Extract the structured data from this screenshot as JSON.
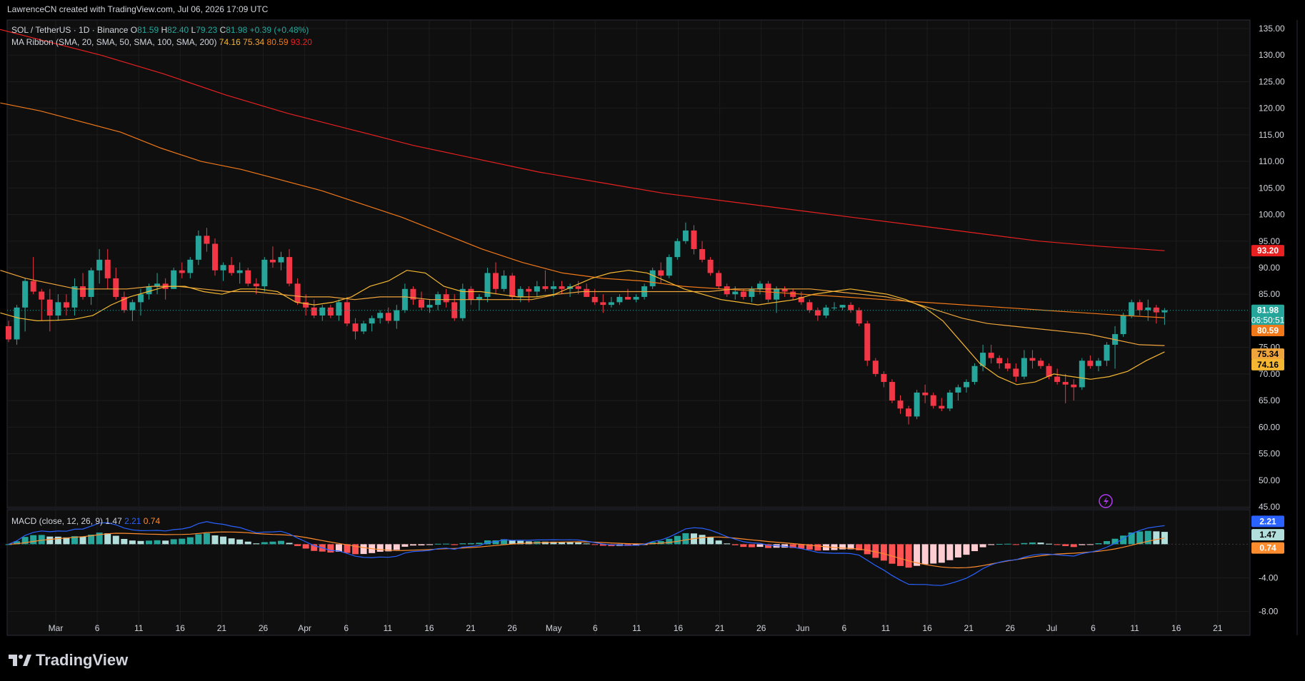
{
  "header": {
    "credit": "LawrenceCN created with TradingView.com, Jul 06, 2026 17:09 UTC"
  },
  "legend": {
    "symbol": "SOL / TetherUS · 1D · Binance",
    "o_label": "O",
    "o_value": "81.59",
    "h_label": "H",
    "h_value": "82.40",
    "l_label": "L",
    "l_value": "79.23",
    "c_label": "C",
    "c_value": "81.98",
    "change": "+0.39 (+0.48%)",
    "ma_title": "MA Ribbon (SMA, 20, SMA, 50, SMA, 100, SMA, 200)",
    "ma_values": [
      "74.16",
      "75.34",
      "80.59",
      "93.20"
    ],
    "macd_title": "MACD (close, 12, 26, 9)",
    "macd_values": [
      "1.47",
      "2.21",
      "0.74"
    ]
  },
  "colors": {
    "up": "#26a69a",
    "down": "#f23645",
    "hist_up_strong": "#26a69a",
    "hist_up_weak": "#b2dfdb",
    "hist_down_strong": "#ff5252",
    "hist_down_weak": "#ffcdd2",
    "ma20": "#f5b731",
    "ma50": "#f0a53c",
    "ma100": "#f07818",
    "ma200": "#e82020",
    "macd": "#2962ff",
    "signal": "#ff8c2e",
    "grid": "#1c1c1c",
    "text": "#d1d4dc"
  },
  "price_axis": {
    "ticks": [
      "135.00",
      "130.00",
      "125.00",
      "120.00",
      "115.00",
      "110.00",
      "105.00",
      "100.00",
      "95.00",
      "90.00",
      "85.00",
      "80.00",
      "75.00",
      "70.00",
      "65.00",
      "60.00",
      "55.00",
      "50.00",
      "45.00"
    ],
    "badges": [
      {
        "value": "93.20",
        "color": "#e82020",
        "text_color": "#ffffff"
      },
      {
        "value": "81.98",
        "sub": "06:50:51",
        "color": "#26a69a",
        "text_color": "#ffffff"
      },
      {
        "value": "80.59",
        "color": "#f07818",
        "text_color": "#ffffff"
      },
      {
        "value": "75.34",
        "color": "#f0a53c",
        "text_color": "#000000"
      },
      {
        "value": "74.16",
        "color": "#f5b731",
        "text_color": "#000000"
      }
    ]
  },
  "macd_axis": {
    "ticks": [
      "-4.00",
      "-8.00"
    ],
    "badges": [
      {
        "value": "2.21",
        "color": "#2962ff",
        "text_color": "#ffffff"
      },
      {
        "value": "1.47",
        "color": "#b2dfdb",
        "text_color": "#000000"
      },
      {
        "value": "0.74",
        "color": "#ff8c2e",
        "text_color": "#ffffff"
      }
    ]
  },
  "time_axis": {
    "labels": [
      "Mar",
      "6",
      "11",
      "16",
      "21",
      "26",
      "Apr",
      "6",
      "11",
      "16",
      "21",
      "26",
      "May",
      "6",
      "11",
      "16",
      "21",
      "26",
      "Jun",
      "6",
      "11",
      "16",
      "21",
      "26",
      "Jul",
      "6",
      "11",
      "16",
      "21"
    ]
  },
  "brand": {
    "name": "TradingView"
  },
  "chart_data": {
    "type": "candlestick",
    "symbol": "SOL / TetherUS",
    "interval": "1D",
    "ylim": [
      45,
      135
    ],
    "start_date": "2026-02-23",
    "candles": [
      [
        79.0,
        80.0,
        76.0,
        76.5
      ],
      [
        76.5,
        83.0,
        75.5,
        82.5
      ],
      [
        82.5,
        88.0,
        78.0,
        87.5
      ],
      [
        87.5,
        92.0,
        85.0,
        85.5
      ],
      [
        85.5,
        86.0,
        80.0,
        84.0
      ],
      [
        84.0,
        86.0,
        78.0,
        81.0
      ],
      [
        81.0,
        85.0,
        80.0,
        83.5
      ],
      [
        83.5,
        85.0,
        81.0,
        82.5
      ],
      [
        82.5,
        88.0,
        81.0,
        86.5
      ],
      [
        86.5,
        89.0,
        84.0,
        84.5
      ],
      [
        84.5,
        90.0,
        83.0,
        89.5
      ],
      [
        89.5,
        93.5,
        87.0,
        91.5
      ],
      [
        91.5,
        93.5,
        86.0,
        88.0
      ],
      [
        88.0,
        90.0,
        84.0,
        84.5
      ],
      [
        84.5,
        85.5,
        81.5,
        82.0
      ],
      [
        82.0,
        84.0,
        80.0,
        83.5
      ],
      [
        83.5,
        86.0,
        81.0,
        85.0
      ],
      [
        85.0,
        87.0,
        84.0,
        86.5
      ],
      [
        86.5,
        89.0,
        85.0,
        87.0
      ],
      [
        87.0,
        88.0,
        84.0,
        86.0
      ],
      [
        86.0,
        90.0,
        86.0,
        89.5
      ],
      [
        89.5,
        91.0,
        88.0,
        89.0
      ],
      [
        89.0,
        92.0,
        88.0,
        91.5
      ],
      [
        91.5,
        97.0,
        90.5,
        96.0
      ],
      [
        96.0,
        97.5,
        93.0,
        94.5
      ],
      [
        94.5,
        95.5,
        88.5,
        89.5
      ],
      [
        89.5,
        91.0,
        87.5,
        90.5
      ],
      [
        90.5,
        92.0,
        88.5,
        89.0
      ],
      [
        89.0,
        91.0,
        87.0,
        89.5
      ],
      [
        89.5,
        90.0,
        86.5,
        87.0
      ],
      [
        87.0,
        88.0,
        85.0,
        86.5
      ],
      [
        86.5,
        92.0,
        85.5,
        91.5
      ],
      [
        91.5,
        94.0,
        90.0,
        91.0
      ],
      [
        91.0,
        93.0,
        89.5,
        92.0
      ],
      [
        92.0,
        93.5,
        86.5,
        87.0
      ],
      [
        87.0,
        88.0,
        83.0,
        83.5
      ],
      [
        83.5,
        85.0,
        81.0,
        82.5
      ],
      [
        82.5,
        84.0,
        80.5,
        81.0
      ],
      [
        81.0,
        83.0,
        80.0,
        82.5
      ],
      [
        82.5,
        83.0,
        80.5,
        81.0
      ],
      [
        81.0,
        84.0,
        80.0,
        83.5
      ],
      [
        83.5,
        84.5,
        79.0,
        79.5
      ],
      [
        79.5,
        80.5,
        76.5,
        78.0
      ],
      [
        78.0,
        80.0,
        77.5,
        79.5
      ],
      [
        79.5,
        81.0,
        78.0,
        80.5
      ],
      [
        80.5,
        82.0,
        79.5,
        81.5
      ],
      [
        81.5,
        82.5,
        79.5,
        80.0
      ],
      [
        80.0,
        83.0,
        78.5,
        82.0
      ],
      [
        82.0,
        87.0,
        81.5,
        86.0
      ],
      [
        86.0,
        86.5,
        83.0,
        84.0
      ],
      [
        84.0,
        85.5,
        82.0,
        82.5
      ],
      [
        82.5,
        84.0,
        81.5,
        83.0
      ],
      [
        83.0,
        85.5,
        82.0,
        85.0
      ],
      [
        85.0,
        86.0,
        82.5,
        83.5
      ],
      [
        83.5,
        85.0,
        80.0,
        80.5
      ],
      [
        80.5,
        87.0,
        80.0,
        86.0
      ],
      [
        86.0,
        86.5,
        83.0,
        84.0
      ],
      [
        84.0,
        85.0,
        82.0,
        84.5
      ],
      [
        84.5,
        90.0,
        83.5,
        89.0
      ],
      [
        89.0,
        91.0,
        85.0,
        86.0
      ],
      [
        86.0,
        89.5,
        85.5,
        88.5
      ],
      [
        88.5,
        89.0,
        84.0,
        84.5
      ],
      [
        84.5,
        86.5,
        83.5,
        86.0
      ],
      [
        86.0,
        86.5,
        83.5,
        85.5
      ],
      [
        85.5,
        87.5,
        84.5,
        86.5
      ],
      [
        86.5,
        89.5,
        85.5,
        86.0
      ],
      [
        86.0,
        87.5,
        84.5,
        86.5
      ],
      [
        86.5,
        87.5,
        85.0,
        86.0
      ],
      [
        86.0,
        87.0,
        84.5,
        86.5
      ],
      [
        86.5,
        87.5,
        85.0,
        86.0
      ],
      [
        86.0,
        87.0,
        84.5,
        84.5
      ],
      [
        84.5,
        86.0,
        83.0,
        83.5
      ],
      [
        83.5,
        85.0,
        81.5,
        83.0
      ],
      [
        83.0,
        84.5,
        82.5,
        83.5
      ],
      [
        83.5,
        85.0,
        83.0,
        84.5
      ],
      [
        84.5,
        86.0,
        84.0,
        84.0
      ],
      [
        84.0,
        85.0,
        83.5,
        84.5
      ],
      [
        84.5,
        87.0,
        84.0,
        86.5
      ],
      [
        86.5,
        90.0,
        86.0,
        89.5
      ],
      [
        89.5,
        91.0,
        87.0,
        88.5
      ],
      [
        88.5,
        92.5,
        88.0,
        92.0
      ],
      [
        92.0,
        95.5,
        91.5,
        95.0
      ],
      [
        95.0,
        98.5,
        94.5,
        97.0
      ],
      [
        97.0,
        98.0,
        92.5,
        93.5
      ],
      [
        93.5,
        95.0,
        91.0,
        91.5
      ],
      [
        91.5,
        92.0,
        88.5,
        89.0
      ],
      [
        89.0,
        89.5,
        86.0,
        86.5
      ],
      [
        86.5,
        87.0,
        84.5,
        85.0
      ],
      [
        85.0,
        86.5,
        84.0,
        85.5
      ],
      [
        85.5,
        86.0,
        84.0,
        84.5
      ],
      [
        84.5,
        86.5,
        83.5,
        86.0
      ],
      [
        86.0,
        87.5,
        85.0,
        87.0
      ],
      [
        87.0,
        87.5,
        83.5,
        84.0
      ],
      [
        84.0,
        86.5,
        81.5,
        86.0
      ],
      [
        86.0,
        86.5,
        84.5,
        85.5
      ],
      [
        85.5,
        86.0,
        84.0,
        84.5
      ],
      [
        84.5,
        85.5,
        83.0,
        83.5
      ],
      [
        83.5,
        84.0,
        81.5,
        82.0
      ],
      [
        82.0,
        82.5,
        80.0,
        81.0
      ],
      [
        81.0,
        83.0,
        80.5,
        82.5
      ],
      [
        82.5,
        83.5,
        82.0,
        82.5
      ],
      [
        82.5,
        83.0,
        82.0,
        83.0
      ],
      [
        83.0,
        83.5,
        81.5,
        82.0
      ],
      [
        82.0,
        82.5,
        79.0,
        79.5
      ],
      [
        79.5,
        80.0,
        71.5,
        72.5
      ],
      [
        72.5,
        73.0,
        69.5,
        70.0
      ],
      [
        70.0,
        70.5,
        67.5,
        68.5
      ],
      [
        68.5,
        69.0,
        64.5,
        65.0
      ],
      [
        65.0,
        66.0,
        62.5,
        63.5
      ],
      [
        63.5,
        64.0,
        60.5,
        62.0
      ],
      [
        62.0,
        67.0,
        61.5,
        66.5
      ],
      [
        66.5,
        68.0,
        64.5,
        66.0
      ],
      [
        66.0,
        66.5,
        63.5,
        64.0
      ],
      [
        64.0,
        65.5,
        63.0,
        63.5
      ],
      [
        63.5,
        67.0,
        63.0,
        66.5
      ],
      [
        66.5,
        68.0,
        65.0,
        67.5
      ],
      [
        67.5,
        69.0,
        66.5,
        68.5
      ],
      [
        68.5,
        72.0,
        68.0,
        71.5
      ],
      [
        71.5,
        75.5,
        70.5,
        74.0
      ],
      [
        74.0,
        75.5,
        72.0,
        73.0
      ],
      [
        73.0,
        73.5,
        71.0,
        72.0
      ],
      [
        72.0,
        73.0,
        70.5,
        71.0
      ],
      [
        71.0,
        72.0,
        68.5,
        69.5
      ],
      [
        69.5,
        74.5,
        69.0,
        73.0
      ],
      [
        73.0,
        74.5,
        71.0,
        72.5
      ],
      [
        72.5,
        73.0,
        71.0,
        71.5
      ],
      [
        71.5,
        72.0,
        69.0,
        69.5
      ],
      [
        69.5,
        71.0,
        68.0,
        68.5
      ],
      [
        68.5,
        70.0,
        64.5,
        68.0
      ],
      [
        68.0,
        69.0,
        65.0,
        67.5
      ],
      [
        67.5,
        73.0,
        67.0,
        72.5
      ],
      [
        72.5,
        73.5,
        71.0,
        71.5
      ],
      [
        71.5,
        73.0,
        70.5,
        72.5
      ],
      [
        72.5,
        76.0,
        71.5,
        75.5
      ],
      [
        75.5,
        79.0,
        71.0,
        77.5
      ],
      [
        77.5,
        81.5,
        77.0,
        81.0
      ],
      [
        81.0,
        84.0,
        80.5,
        83.5
      ],
      [
        83.5,
        84.0,
        81.0,
        82.0
      ],
      [
        82.0,
        84.0,
        80.0,
        82.5
      ],
      [
        82.5,
        83.0,
        79.5,
        81.59
      ],
      [
        81.59,
        82.4,
        79.23,
        81.98
      ]
    ],
    "ma20": [
      81.5,
      80.5,
      80.0,
      80.1,
      80.3,
      81.0,
      83.0,
      84.5,
      85.5,
      86.5,
      86.5,
      85.5,
      85.0,
      86.0,
      86.0,
      85.5,
      83.5,
      83.0,
      83.5,
      84.5,
      86.5,
      87.5,
      89.5,
      89.0,
      86.5,
      85.5,
      85.5,
      85.0,
      84.5,
      84.5,
      85.0,
      86.5,
      88.0,
      89.0,
      89.5,
      89.0,
      87.5,
      86.0,
      85.0,
      84.0,
      83.5,
      83.0,
      83.5,
      84.0,
      85.0,
      85.5,
      86.0,
      85.5,
      85.0,
      84.0,
      82.5,
      80.0,
      76.0,
      72.0,
      69.5,
      68.0,
      68.5,
      70.0,
      69.5,
      69.0,
      69.5,
      70.5,
      72.5,
      74.16
    ],
    "ma50": [
      89.5,
      88.0,
      87.0,
      86.0,
      86.0,
      86.0,
      86.5,
      86.5,
      86.0,
      85.5,
      85.5,
      85.0,
      84.5,
      84.5,
      84.0,
      84.5,
      84.5,
      84.0,
      84.0,
      84.0,
      84.0,
      84.0,
      85.0,
      85.5,
      85.5,
      85.5,
      85.5,
      85.5,
      85.5,
      86.0,
      86.0,
      86.0,
      86.0,
      85.5,
      85.0,
      84.5,
      83.5,
      82.0,
      80.5,
      79.5,
      79.0,
      78.5,
      78.0,
      77.5,
      76.5,
      75.5,
      75.34
    ],
    "ma100": [
      121.0,
      119.5,
      117.5,
      115.5,
      112.5,
      110.0,
      108.5,
      106.5,
      104.5,
      102.0,
      99.5,
      96.5,
      93.5,
      91.0,
      89.0,
      88.0,
      87.5,
      86.5,
      86.0,
      85.5,
      85.0,
      84.5,
      84.0,
      83.5,
      83.0,
      82.5,
      82.0,
      81.5,
      81.0,
      80.59
    ],
    "ma200": [
      136.0,
      133.0,
      130.0,
      126.5,
      122.5,
      119.0,
      116.0,
      113.0,
      110.5,
      108.0,
      106.0,
      104.0,
      102.5,
      101.0,
      99.5,
      98.0,
      96.5,
      95.0,
      94.0,
      93.2
    ],
    "macd": {
      "line_last": 2.21,
      "signal_last": 0.74,
      "hist_last": 1.47,
      "ylim": [
        -10.5,
        3.6
      ]
    }
  }
}
